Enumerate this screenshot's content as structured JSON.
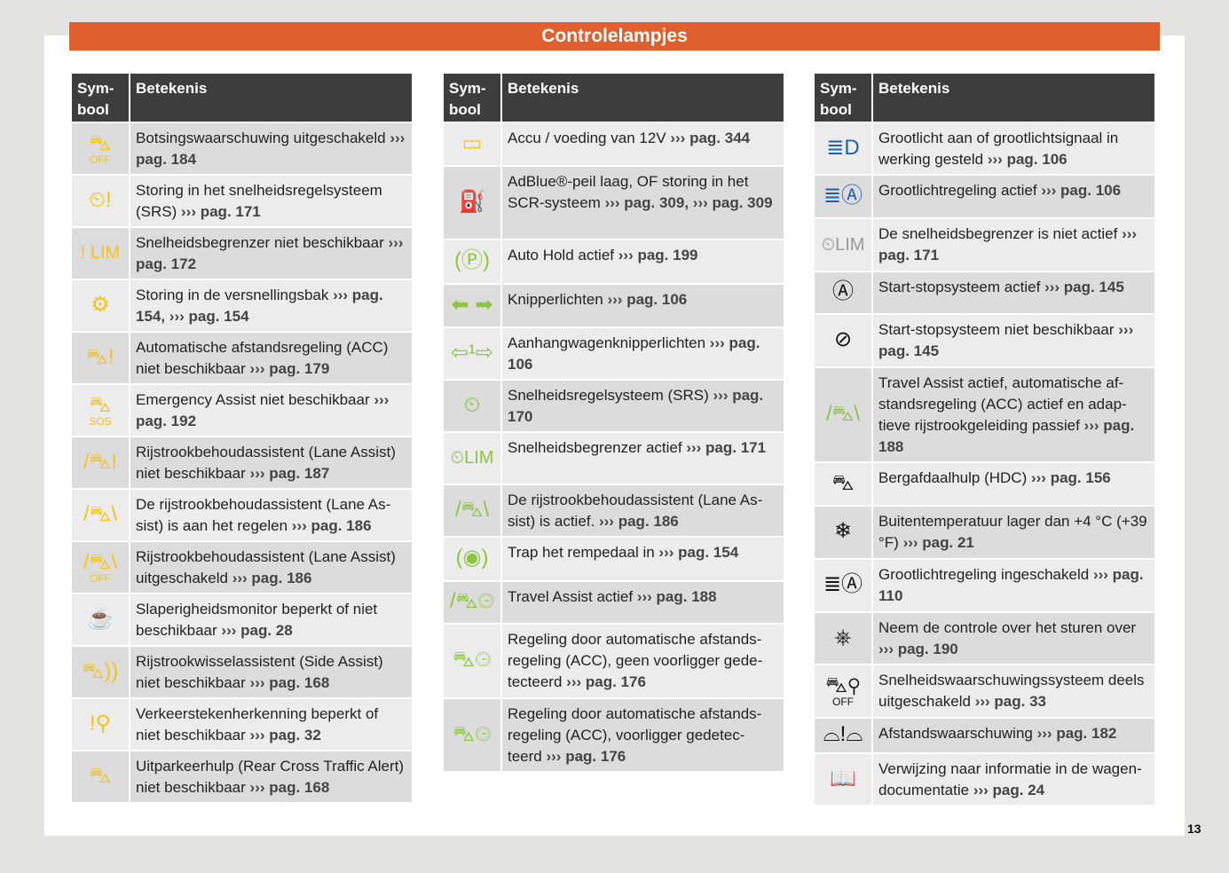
{
  "title": "Controlelampjes",
  "page_number": "13",
  "colors": {
    "band": "#e05f2e",
    "header": "#3d3d3d",
    "yellow": "#f2c31a",
    "green": "#8cc63e",
    "blue": "#1f5fae",
    "grey": "#9a9a9a",
    "black": "#111111"
  },
  "headers": {
    "symbol": "Sym-bool",
    "meaning": "Betekenis"
  },
  "tables": [
    {
      "rows": [
        {
          "icon": {
            "name": "collision-warning-off-icon",
            "glyph": "⛍",
            "color": "yellow",
            "label": "OFF"
          },
          "text": "Botsingswaarschuwing uitgeschakeld",
          "ref": "››› pag. 184"
        },
        {
          "icon": {
            "name": "speed-regulation-fault-icon",
            "glyph": "⏲!",
            "color": "yellow"
          },
          "text": "Storing in het snelheidsregelsysteem (SRS)",
          "ref": "››› pag. 171"
        },
        {
          "icon": {
            "name": "speed-limiter-unavailable-icon",
            "glyph": "! LIM",
            "color": "yellow",
            "inline": true
          },
          "text": "Snelheidsbegrenzer niet beschikbaar",
          "ref": "››› pag. 172"
        },
        {
          "icon": {
            "name": "gearbox-fault-icon",
            "glyph": "⚙",
            "color": "yellow"
          },
          "text": "Storing in de versnellingsbak",
          "ref": "››› pag. 154, ››› pag. 154"
        },
        {
          "icon": {
            "name": "acc-unavailable-icon",
            "glyph": "⛍!",
            "color": "yellow"
          },
          "text": "Automatische afstandsregeling (ACC) niet beschikbaar",
          "ref": "››› pag. 179"
        },
        {
          "icon": {
            "name": "emergency-assist-unavailable-icon",
            "glyph": "⛍",
            "color": "yellow",
            "label": "SOS"
          },
          "text": "Emergency Assist niet beschikbaar",
          "ref": "››› pag. 192"
        },
        {
          "icon": {
            "name": "lane-assist-unavailable-icon",
            "glyph": "/⛍!",
            "color": "yellow"
          },
          "text": "Rijstrookbehoudassistent (Lane Assist) niet beschikbaar",
          "ref": "››› pag. 187"
        },
        {
          "icon": {
            "name": "lane-assist-regulating-icon",
            "glyph": "/⛍\\",
            "color": "yellow"
          },
          "text": "De rijstrookbehoudassistent (Lane As-sist) is aan het regelen",
          "ref": "››› pag. 186"
        },
        {
          "icon": {
            "name": "lane-assist-off-icon",
            "glyph": "/⛍\\",
            "color": "yellow",
            "label": "OFF"
          },
          "text": "Rijstrookbehoudassistent (Lane Assist) uitgeschakeld",
          "ref": "››› pag. 186"
        },
        {
          "icon": {
            "name": "drowsiness-monitor-icon",
            "glyph": "☕",
            "color": "yellow"
          },
          "text": "Slaperigheidsmonitor beperkt of niet beschikbaar",
          "ref": "››› pag. 28"
        },
        {
          "icon": {
            "name": "side-assist-unavailable-icon",
            "glyph": "⛍))",
            "color": "yellow"
          },
          "text": "Rijstrookwisselassistent (Side Assist) niet beschikbaar",
          "ref": "››› pag. 168"
        },
        {
          "icon": {
            "name": "traffic-sign-recognition-icon",
            "glyph": "!⚲",
            "color": "yellow"
          },
          "text": "Verkeerstekenherkenning beperkt of niet beschikbaar",
          "ref": "››› pag. 32"
        },
        {
          "icon": {
            "name": "rear-cross-traffic-alert-icon",
            "glyph": "⛍",
            "color": "yellow"
          },
          "text": "Uitparkeerhulp (Rear Cross Traffic Alert) niet beschikbaar",
          "ref": "››› pag. 168"
        }
      ]
    },
    {
      "rows": [
        {
          "icon": {
            "name": "battery-icon",
            "glyph": "▭",
            "color": "yellow"
          },
          "text": "Accu / voeding van 12V",
          "ref": "››› pag. 344"
        },
        {
          "icon": {
            "name": "adblue-icon",
            "glyph": "⛽",
            "color": "yellow"
          },
          "text": "AdBlue®-peil laag, OF storing in het SCR-systeem",
          "ref": "››› pag. 309, ››› pag. 309"
        },
        {
          "icon": {
            "name": "auto-hold-icon",
            "glyph": "(Ⓟ)",
            "color": "green"
          },
          "text": "Auto Hold actief",
          "ref": "››› pag. 199"
        },
        {
          "icon": {
            "name": "turn-signals-icon",
            "glyph": "⬅ ➡",
            "color": "green"
          },
          "text": "Knipperlichten",
          "ref": "››› pag. 106"
        },
        {
          "icon": {
            "name": "trailer-turn-signals-icon",
            "glyph": "⇦¹⇨",
            "color": "green"
          },
          "text": "Aanhangwagenknipperlichten",
          "ref": "››› pag. 106"
        },
        {
          "icon": {
            "name": "speed-regulation-active-icon",
            "glyph": "⏲",
            "color": "green"
          },
          "text": "Snelheidsregelsysteem (SRS)",
          "ref": "››› pag. 170"
        },
        {
          "icon": {
            "name": "speed-limiter-active-icon",
            "glyph": "⏲LIM",
            "color": "green",
            "inline": true
          },
          "text": "Snelheidsbegrenzer actief",
          "ref": "››› pag. 171"
        },
        {
          "icon": {
            "name": "lane-assist-active-icon",
            "glyph": "/⛍\\",
            "color": "green"
          },
          "text": "De rijstrookbehoudassistent (Lane As-sist) is actief.",
          "ref": "››› pag. 186"
        },
        {
          "icon": {
            "name": "brake-pedal-icon",
            "glyph": "(◉)",
            "color": "green"
          },
          "text": "Trap het rempedaal in",
          "ref": "››› pag. 154"
        },
        {
          "icon": {
            "name": "travel-assist-active-icon",
            "glyph": "/⛍⏲",
            "color": "green"
          },
          "text": "Travel Assist actief",
          "ref": "››› pag. 188"
        },
        {
          "icon": {
            "name": "acc-no-vehicle-icon",
            "glyph": "⛍⏲",
            "color": "green"
          },
          "text": "Regeling door automatische afstands-regeling (ACC), geen voorligger gede-tecteerd",
          "ref": "››› pag. 176"
        },
        {
          "icon": {
            "name": "acc-vehicle-detected-icon",
            "glyph": "⛍⏲",
            "color": "green"
          },
          "text": "Regeling door automatische afstands-regeling (ACC), voorligger gedetec-teerd",
          "ref": "››› pag. 176"
        }
      ]
    },
    {
      "rows": [
        {
          "icon": {
            "name": "high-beam-icon",
            "glyph": "≣D",
            "color": "blue"
          },
          "text": "Grootlicht aan of grootlichtsignaal in werking gesteld",
          "ref": "››› pag. 106"
        },
        {
          "icon": {
            "name": "high-beam-assist-active-icon",
            "glyph": "≣Ⓐ",
            "color": "blue"
          },
          "text": "Grootlichtregeling actief",
          "ref": "››› pag. 106"
        },
        {
          "icon": {
            "name": "speed-limiter-inactive-icon",
            "glyph": "⏲LIM",
            "color": "grey",
            "inline": true
          },
          "text": "De snelheidsbegrenzer is niet actief",
          "ref": "››› pag. 171"
        },
        {
          "icon": {
            "name": "start-stop-active-icon",
            "glyph": "Ⓐ",
            "color": "black"
          },
          "text": "Start-stopsysteem actief",
          "ref": "››› pag. 145"
        },
        {
          "icon": {
            "name": "start-stop-unavailable-icon",
            "glyph": "⊘",
            "color": "black"
          },
          "text": "Start-stopsysteem niet beschikbaar",
          "ref": "››› pag. 145"
        },
        {
          "icon": {
            "name": "travel-assist-acc-icon",
            "glyph": "/⛍\\",
            "color": "green"
          },
          "text": "Travel Assist actief, automatische af-standsregeling (ACC) actief en adap-tieve rijstrookgeleiding passief",
          "ref": "››› pag. 188"
        },
        {
          "icon": {
            "name": "hill-descent-control-icon",
            "glyph": "⛍",
            "color": "black"
          },
          "text": "Bergafdaalhulp (HDC)",
          "ref": "››› pag. 156"
        },
        {
          "icon": {
            "name": "snowflake-icon",
            "glyph": "❄",
            "color": "black"
          },
          "text": "Buitentemperatuur lager dan +4 °C (+39 °F)",
          "ref": "››› pag. 21"
        },
        {
          "icon": {
            "name": "high-beam-assist-on-icon",
            "glyph": "≣Ⓐ",
            "color": "black"
          },
          "text": "Grootlichtregeling ingeschakeld",
          "ref": "››› pag. 110"
        },
        {
          "icon": {
            "name": "steering-wheel-hands-icon",
            "glyph": "⎈",
            "color": "black"
          },
          "text": "Neem de controle over het sturen over",
          "ref": "››› pag. 190"
        },
        {
          "icon": {
            "name": "speed-warning-off-icon",
            "glyph": "⛍⚲",
            "color": "black",
            "label": "OFF"
          },
          "text": "Snelheidswaarschuwingssysteem deels uitgeschakeld",
          "ref": "››› pag. 33"
        },
        {
          "icon": {
            "name": "distance-warning-icon",
            "glyph": "⌓!⌓",
            "color": "black"
          },
          "text": "Afstandswaarschuwing",
          "ref": "››› pag. 182"
        },
        {
          "icon": {
            "name": "owners-manual-icon",
            "glyph": "📖",
            "color": "black"
          },
          "text": "Verwijzing naar informatie in de wagen-documentatie",
          "ref": "››› pag. 24"
        }
      ]
    }
  ]
}
